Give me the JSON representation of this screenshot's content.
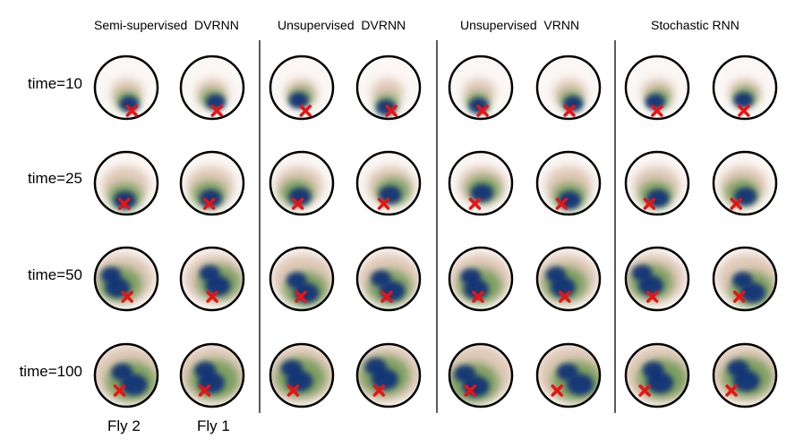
{
  "figure": {
    "column_titles": [
      "Semi-supervised  DVRNN",
      "Unsupervised  DVRNN",
      "Unsupervised  VRNN",
      "Stochastic RNN"
    ],
    "row_labels": [
      "time=10",
      "time=25",
      "time=50",
      "time=100"
    ],
    "fly_labels": [
      "Fly 2",
      "Fly 1"
    ],
    "colors": {
      "background": "#ffffff",
      "circle_border": "#000000",
      "low_density": "#c9a488",
      "mid_density": "#6f9a55",
      "high_density": "#0f2e78",
      "marker": "#ee1111",
      "divider": "#000000"
    }
  }
}
